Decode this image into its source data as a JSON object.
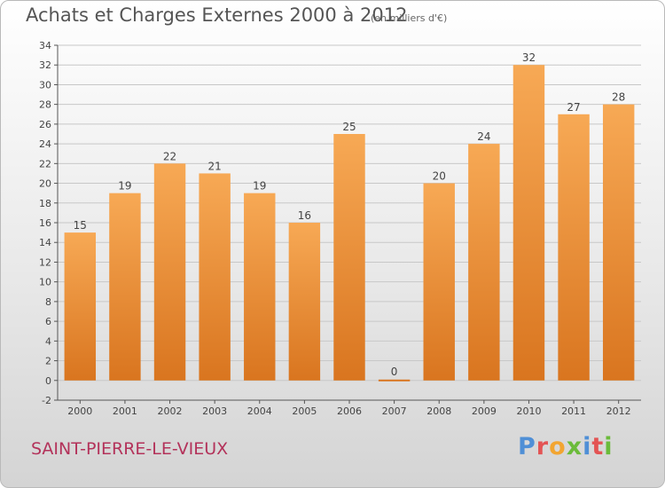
{
  "header": {
    "title": "Achats et Charges Externes 2000 à 2012",
    "subtitle": "(en milliers d'€)"
  },
  "footer": {
    "commune": "SAINT-PIERRE-LE-VIEUX",
    "logo_letters": [
      "P",
      "r",
      "o",
      "x",
      "i",
      "t",
      "i"
    ],
    "logo_colors": [
      "#4f8fd6",
      "#e35454",
      "#f2a531",
      "#6bbb3a",
      "#4f8fd6",
      "#e35454",
      "#6bbb3a"
    ]
  },
  "colors": {
    "bar_top": "#f7a955",
    "bar_bottom": "#d9751f",
    "grid": "#c8c8c8",
    "axis": "#555555",
    "label": "#444444"
  },
  "chart_data": {
    "type": "bar",
    "title": "Achats et Charges Externes 2000 à 2012",
    "subtitle": "(en milliers d'€)",
    "categories": [
      "2000",
      "2001",
      "2002",
      "2003",
      "2004",
      "2005",
      "2006",
      "2007",
      "2008",
      "2009",
      "2010",
      "2011",
      "2012"
    ],
    "values": [
      15,
      19,
      22,
      21,
      19,
      16,
      25,
      0,
      20,
      24,
      32,
      27,
      28
    ],
    "ylim": [
      -2,
      34
    ],
    "yticks": [
      -2,
      0,
      2,
      4,
      6,
      8,
      10,
      12,
      14,
      16,
      18,
      20,
      22,
      24,
      26,
      28,
      30,
      32,
      34
    ],
    "grid": true,
    "data_labels": true
  }
}
